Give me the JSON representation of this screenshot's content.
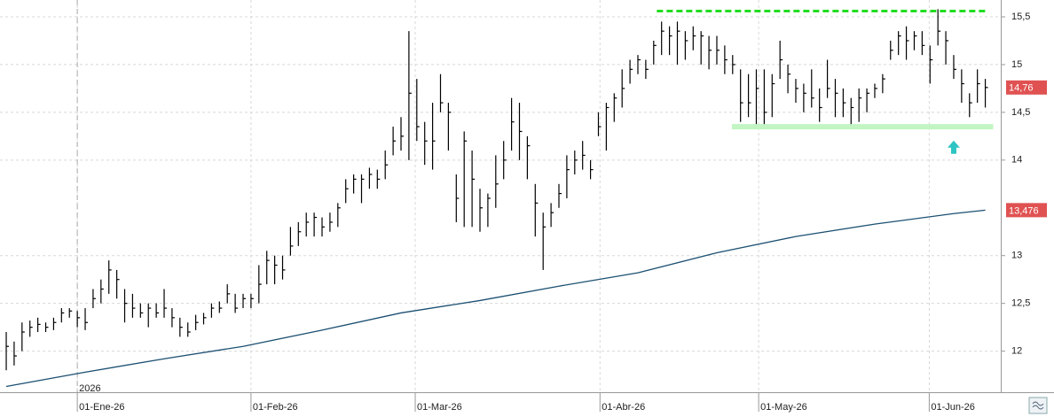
{
  "chart_data": {
    "type": "ohlc",
    "xlim": [
      -0.79,
      125.96
    ],
    "xticks": [
      {
        "value": 9,
        "label": "01-Ene-26"
      },
      {
        "value": 31,
        "label": "01-Feb-26"
      },
      {
        "value": 51.8,
        "label": "01-Mar-26"
      },
      {
        "value": 75.2,
        "label": "01-Abr-26"
      },
      {
        "value": 95.3,
        "label": "01-May-26"
      },
      {
        "value": 116.9,
        "label": "01-Jun-26"
      }
    ],
    "year_label": {
      "value": 9,
      "label": "2026"
    },
    "ylim": [
      11.57,
      15.676
    ],
    "yticks": [
      {
        "value": 15.5,
        "label": "15,5"
      },
      15,
      {
        "value": 14.5,
        "label": "14,5"
      },
      14,
      13,
      {
        "value": 12.5,
        "label": "12,5"
      },
      12
    ],
    "grid": true,
    "series": [
      {
        "color": "#000000",
        "high": [
          12.2,
          12.1,
          12.3,
          12.32,
          12.35,
          12.3,
          12.35,
          12.45,
          12.45,
          12.42,
          12.45,
          12.65,
          12.75,
          12.95,
          12.85,
          12.65,
          12.6,
          12.5,
          12.5,
          12.5,
          12.65,
          12.45,
          12.35,
          12.3,
          12.38,
          12.4,
          12.5,
          12.52,
          12.7,
          12.6,
          12.6,
          12.6,
          12.9,
          13.05,
          13.0,
          13.0,
          13.3,
          13.35,
          13.45,
          13.45,
          13.4,
          13.45,
          13.55,
          13.8,
          13.85,
          13.85,
          13.92,
          13.9,
          14.1,
          14.35,
          14.45,
          15.35,
          14.85,
          14.4,
          14.6,
          14.9,
          14.6,
          13.85,
          14.3,
          14.1,
          13.7,
          13.65,
          14.05,
          14.2,
          14.65,
          14.6,
          14.25,
          13.75,
          13.45,
          13.55,
          13.75,
          14.05,
          14.1,
          14.2,
          14.0,
          14.5,
          14.6,
          14.7,
          14.95,
          15.05,
          15.1,
          15.05,
          15.25,
          15.45,
          15.4,
          15.45,
          15.35,
          15.4,
          15.35,
          15.3,
          15.3,
          15.2,
          15.1,
          14.95,
          14.9,
          14.95,
          14.95,
          14.9,
          15.25,
          15.0,
          14.85,
          14.8,
          14.95,
          14.75,
          15.05,
          14.85,
          14.75,
          14.65,
          14.75,
          14.75,
          14.8,
          14.9,
          15.25,
          15.35,
          15.4,
          15.35,
          15.35,
          15.2,
          15.58,
          15.35,
          15.1,
          14.95,
          14.7,
          14.95,
          14.85
        ],
        "low": [
          11.8,
          11.85,
          12.0,
          12.15,
          12.2,
          12.2,
          12.22,
          12.3,
          12.35,
          12.25,
          12.22,
          12.45,
          12.5,
          12.6,
          12.55,
          12.3,
          12.35,
          12.35,
          12.25,
          12.35,
          12.35,
          12.25,
          12.15,
          12.15,
          12.22,
          12.28,
          12.35,
          12.4,
          12.5,
          12.4,
          12.45,
          12.45,
          12.5,
          12.7,
          12.7,
          12.75,
          13.0,
          13.1,
          13.2,
          13.2,
          13.2,
          13.25,
          13.3,
          13.55,
          13.65,
          13.55,
          13.7,
          13.7,
          13.8,
          14.05,
          14.1,
          14.0,
          14.2,
          13.95,
          13.9,
          14.5,
          14.1,
          13.35,
          13.3,
          13.3,
          13.25,
          13.3,
          13.5,
          13.8,
          14.1,
          14.0,
          13.8,
          13.2,
          12.85,
          13.3,
          13.5,
          13.6,
          13.85,
          13.9,
          13.8,
          14.25,
          14.1,
          14.4,
          14.55,
          14.8,
          14.9,
          14.85,
          15.0,
          15.1,
          15.1,
          15.0,
          15.05,
          15.15,
          15.0,
          14.95,
          15.0,
          14.9,
          14.9,
          14.4,
          14.45,
          14.35,
          14.35,
          14.45,
          14.85,
          14.7,
          14.6,
          14.5,
          14.55,
          14.4,
          14.65,
          14.45,
          14.45,
          14.35,
          14.4,
          14.5,
          14.65,
          14.7,
          15.05,
          15.1,
          15.05,
          15.15,
          15.1,
          14.8,
          15.2,
          15.0,
          14.85,
          14.6,
          14.45,
          14.6,
          14.55
        ],
        "close": [
          12.05,
          11.95,
          12.2,
          12.25,
          12.28,
          12.25,
          12.3,
          12.4,
          12.42,
          12.35,
          12.3,
          12.55,
          12.65,
          12.85,
          12.75,
          12.5,
          12.45,
          12.4,
          12.45,
          12.4,
          12.45,
          12.35,
          12.25,
          12.2,
          12.3,
          12.35,
          12.45,
          12.45,
          12.6,
          12.45,
          12.55,
          12.55,
          12.7,
          12.95,
          12.9,
          12.85,
          13.1,
          13.25,
          13.35,
          13.4,
          13.3,
          13.35,
          13.5,
          13.7,
          13.8,
          13.8,
          13.85,
          13.8,
          13.95,
          14.2,
          14.25,
          14.7,
          14.35,
          14.2,
          14.2,
          14.6,
          14.5,
          13.6,
          14.2,
          13.8,
          13.5,
          13.6,
          13.75,
          14.0,
          14.4,
          14.3,
          14.15,
          13.55,
          13.3,
          13.45,
          13.65,
          13.9,
          14.0,
          14.05,
          13.9,
          14.35,
          14.55,
          14.65,
          14.75,
          14.95,
          15.05,
          14.95,
          15.2,
          15.35,
          15.3,
          15.35,
          15.25,
          15.3,
          15.3,
          15.15,
          15.15,
          15.05,
          15.0,
          14.6,
          14.6,
          14.75,
          14.5,
          14.8,
          15.05,
          14.9,
          14.75,
          14.7,
          14.65,
          14.55,
          14.75,
          14.7,
          14.6,
          14.55,
          14.65,
          14.7,
          14.75,
          14.85,
          15.15,
          15.3,
          15.25,
          15.3,
          15.2,
          15.05,
          15.35,
          15.25,
          14.95,
          14.8,
          14.6,
          14.8,
          14.76
        ],
        "last_value_label": "14,76",
        "label_color": "#e05252"
      },
      {
        "type": "line",
        "color": "#1b4f72",
        "x": [
          0,
          10,
          20,
          30,
          40,
          50,
          60,
          70,
          80,
          90,
          100,
          110,
          120,
          124
        ],
        "values": [
          11.63,
          11.78,
          11.92,
          12.05,
          12.22,
          12.4,
          12.53,
          12.68,
          12.82,
          13.03,
          13.2,
          13.33,
          13.44,
          13.476
        ],
        "last_value_label": "13,476",
        "label_color": "#e05252"
      }
    ],
    "annotations": [
      {
        "type": "hline",
        "y": 15.56,
        "x": [
          82.4,
          124
        ],
        "color": "#22dd22",
        "style": "dashed"
      },
      {
        "type": "hline",
        "y": 14.35,
        "x": [
          91.9,
          125
        ],
        "color": "#c2f5c2",
        "style": "solid"
      },
      {
        "type": "arrow",
        "y": 14.13,
        "x": 120,
        "color": "#2ec4c4"
      }
    ]
  }
}
